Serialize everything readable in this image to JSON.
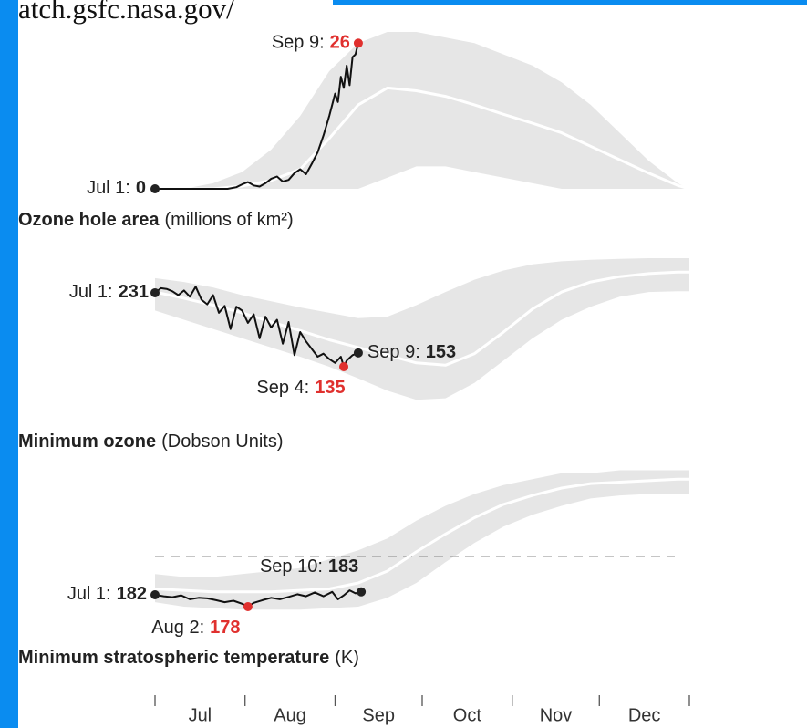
{
  "header": {
    "url": "atch.gsfc.nasa.gov/"
  },
  "chart_data": [
    {
      "type": "line",
      "title": "Ozone hole area",
      "unit": "(millions of km²)",
      "xlim": [
        0,
        184
      ],
      "xticks": [
        0,
        31,
        62,
        92,
        123,
        153,
        184
      ],
      "months": [
        "Jul",
        "Aug",
        "Sep",
        "Oct",
        "Nov",
        "Dec"
      ],
      "ylim": [
        0,
        28
      ],
      "range": {
        "color": "#e6e6e6",
        "x": [
          0,
          10,
          20,
          30,
          40,
          50,
          60,
          70,
          80,
          90,
          100,
          110,
          120,
          130,
          140,
          150,
          160,
          170,
          180,
          184
        ],
        "high": [
          0,
          0,
          1,
          3,
          7,
          13,
          21,
          26,
          28,
          28,
          27,
          26,
          24,
          22,
          19,
          15,
          10,
          5,
          1,
          0
        ],
        "low": [
          0,
          0,
          0,
          0,
          0,
          0,
          0,
          0,
          2,
          4,
          4,
          3,
          2,
          1,
          0,
          0,
          0,
          0,
          0,
          0
        ]
      },
      "mean": {
        "color": "#ffffff",
        "x": [
          0,
          10,
          20,
          30,
          40,
          50,
          60,
          70,
          80,
          90,
          100,
          110,
          120,
          130,
          140,
          150,
          160,
          170,
          180,
          184
        ],
        "values": [
          0,
          0,
          0,
          0.5,
          1.5,
          3.5,
          9,
          15,
          18,
          17.5,
          16.5,
          15,
          13.3,
          11.7,
          10,
          7.6,
          5.2,
          2.8,
          0.6,
          0
        ]
      },
      "current": {
        "color": "#111111",
        "x": [
          0,
          5,
          10,
          15,
          20,
          25,
          28,
          30,
          32,
          34,
          36,
          38,
          40,
          42,
          44,
          46,
          48,
          50,
          52,
          54,
          56,
          58,
          60,
          61,
          62,
          63,
          64,
          65,
          66,
          67,
          68,
          69,
          70
        ],
        "values": [
          0,
          0,
          0,
          0,
          0,
          0,
          0.3,
          0.8,
          1.2,
          0.6,
          0.4,
          1.0,
          1.8,
          2.2,
          1.3,
          1.6,
          2.8,
          3.5,
          2.6,
          4.5,
          6.5,
          9.5,
          13,
          15,
          17,
          15.5,
          20,
          18,
          22,
          18.5,
          23.5,
          24,
          26
        ]
      },
      "annotations": [
        {
          "label": "Jul 1:",
          "value": 0,
          "x": 0,
          "color": "#222222"
        },
        {
          "label": "Sep 9:",
          "value": 26,
          "x": 70,
          "color": "#e0302e"
        }
      ]
    },
    {
      "type": "line",
      "title": "Minimum ozone",
      "unit": "(Dobson Units)",
      "xlim": [
        0,
        184
      ],
      "ylim": [
        90,
        280
      ],
      "range": {
        "color": "#e6e6e6",
        "x": [
          0,
          10,
          20,
          30,
          40,
          50,
          60,
          70,
          80,
          90,
          100,
          110,
          120,
          130,
          140,
          150,
          160,
          170,
          180,
          184
        ],
        "high": [
          250,
          245,
          238,
          228,
          220,
          212,
          205,
          198,
          200,
          215,
          232,
          248,
          260,
          268,
          272,
          274,
          275,
          276,
          276,
          276
        ],
        "low": [
          208,
          196,
          184,
          172,
          160,
          148,
          135,
          120,
          104,
          92,
          94,
          114,
          143,
          172,
          196,
          213,
          226,
          232,
          233,
          233
        ]
      },
      "mean": {
        "color": "#ffffff",
        "x": [
          0,
          10,
          20,
          30,
          40,
          50,
          60,
          70,
          80,
          90,
          100,
          110,
          120,
          130,
          140,
          150,
          160,
          170,
          180,
          184
        ],
        "values": [
          232,
          224,
          215,
          205,
          193,
          182,
          170,
          160,
          150,
          140,
          137,
          152,
          180,
          210,
          232,
          245,
          252,
          256,
          258,
          258
        ]
      },
      "current": {
        "color": "#111111",
        "x": [
          0,
          2,
          4,
          6,
          8,
          10,
          12,
          14,
          16,
          18,
          20,
          22,
          24,
          26,
          28,
          30,
          32,
          34,
          36,
          38,
          40,
          42,
          44,
          46,
          48,
          50,
          52,
          54,
          56,
          58,
          60,
          62,
          64,
          65,
          66,
          68,
          70
        ],
        "values": [
          231,
          237,
          236,
          233,
          228,
          234,
          226,
          239,
          222,
          216,
          228,
          205,
          214,
          184,
          213,
          208,
          192,
          203,
          172,
          200,
          186,
          196,
          165,
          193,
          150,
          180,
          168,
          158,
          148,
          152,
          145,
          140,
          148,
          135,
          143,
          150,
          153
        ]
      },
      "annotations": [
        {
          "label": "Jul 1:",
          "value": 231,
          "x": 0,
          "color": "#222222"
        },
        {
          "label": "Sep 4:",
          "value": 135,
          "x": 65,
          "color": "#e0302e"
        },
        {
          "label": "Sep 9:",
          "value": 153,
          "x": 70,
          "color": "#222222"
        }
      ]
    },
    {
      "type": "line",
      "title": "Minimum stratospheric temperature",
      "unit": "(K)",
      "xlim": [
        0,
        184
      ],
      "ylim": [
        175,
        225
      ],
      "threshold": 195,
      "range": {
        "color": "#e6e6e6",
        "x": [
          0,
          10,
          20,
          30,
          40,
          50,
          60,
          70,
          80,
          90,
          100,
          110,
          120,
          130,
          140,
          150,
          160,
          170,
          180,
          184
        ],
        "high": [
          189,
          188,
          188,
          189,
          190,
          191,
          194,
          197,
          201,
          207,
          212,
          216,
          219,
          221,
          223,
          223,
          224,
          224,
          224,
          224
        ],
        "low": [
          179.5,
          178,
          177.5,
          177,
          177,
          177,
          177.5,
          178,
          181,
          186,
          193,
          199.5,
          205,
          209,
          212,
          214.5,
          215.5,
          216,
          216,
          216
        ]
      },
      "mean": {
        "color": "#ffffff",
        "x": [
          0,
          10,
          20,
          30,
          40,
          50,
          60,
          70,
          80,
          90,
          100,
          110,
          120,
          130,
          140,
          150,
          160,
          170,
          180,
          184
        ],
        "values": [
          184,
          183.5,
          183,
          183,
          183,
          183.5,
          184,
          186,
          190,
          196.5,
          202.5,
          208,
          212.5,
          215.5,
          218,
          219.5,
          220,
          220.5,
          221,
          221
        ]
      },
      "current": {
        "color": "#111111",
        "x": [
          0,
          3,
          6,
          9,
          12,
          15,
          18,
          21,
          24,
          27,
          30,
          32,
          34,
          37,
          40,
          43,
          46,
          49,
          52,
          55,
          58,
          61,
          63,
          65,
          67,
          69,
          71
        ],
        "values": [
          182,
          181.5,
          181.2,
          181.8,
          180.5,
          181,
          180.8,
          180.2,
          179.5,
          180,
          179,
          178,
          179.3,
          180.2,
          181,
          180.5,
          181.3,
          182.2,
          181.5,
          182.8,
          181.5,
          183,
          180.5,
          181.8,
          183.5,
          182.5,
          183
        ]
      },
      "annotations": [
        {
          "label": "Jul 1:",
          "value": 182,
          "x": 0,
          "color": "#222222"
        },
        {
          "label": "Sep 10:",
          "value": 183,
          "x": 71,
          "color": "#222222"
        },
        {
          "label": "Aug 2:",
          "value": 178,
          "x": 32,
          "color": "#e0302e"
        }
      ]
    }
  ]
}
